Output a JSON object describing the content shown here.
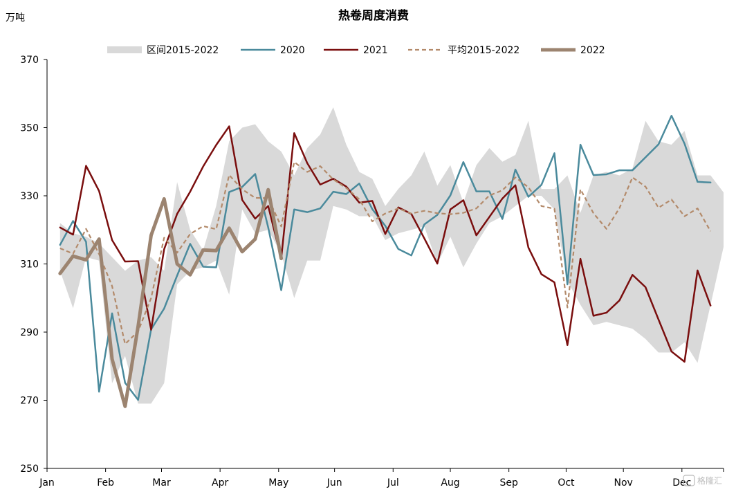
{
  "chart_data": {
    "type": "line",
    "title": "热卷周度消费",
    "ylabel": "万吨",
    "ylim": [
      250,
      370
    ],
    "yticks": [
      250,
      270,
      290,
      310,
      330,
      350,
      370
    ],
    "xlim": [
      0,
      52
    ],
    "month_ticks": [
      {
        "label": "Jan",
        "week": 0
      },
      {
        "label": "Feb",
        "week": 4.5
      },
      {
        "label": "Mar",
        "week": 8.8
      },
      {
        "label": "Apr",
        "week": 13.3
      },
      {
        "label": "May",
        "week": 17.8
      },
      {
        "label": "Jun",
        "week": 22.1
      },
      {
        "label": "Jul",
        "week": 26.6
      },
      {
        "label": "Aug",
        "week": 31.0
      },
      {
        "label": "Sep",
        "week": 35.5
      },
      {
        "label": "Oct",
        "week": 39.9
      },
      {
        "label": "Nov",
        "week": 44.3
      },
      {
        "label": "Dec",
        "week": 48.8
      }
    ],
    "grid": false,
    "legend_position": "top",
    "band": {
      "name": "区间2015-2022",
      "color": "#d9d9d9",
      "x": [
        1,
        2,
        3,
        4,
        5,
        6,
        7,
        8,
        9,
        10,
        11,
        12,
        13,
        14,
        15,
        16,
        17,
        18,
        19,
        20,
        21,
        22,
        23,
        24,
        25,
        26,
        27,
        28,
        29,
        30,
        31,
        32,
        33,
        34,
        35,
        36,
        37,
        38,
        39,
        40,
        41,
        42,
        43,
        44,
        45,
        46,
        47,
        48,
        49,
        50,
        51,
        52
      ],
      "upper": [
        322,
        319,
        318,
        316,
        312,
        308,
        311,
        312,
        308,
        334,
        320,
        314,
        327,
        346,
        350,
        351,
        346,
        343,
        336,
        344,
        348,
        356,
        345,
        337,
        335,
        327,
        332,
        336,
        343,
        333,
        339,
        328,
        339,
        344,
        340,
        342,
        352,
        332,
        332,
        336,
        325,
        336,
        337,
        336,
        338,
        352,
        346,
        345,
        349,
        336,
        336,
        331
      ],
      "lower": [
        308,
        297,
        312,
        311,
        275,
        283,
        269,
        269,
        275,
        304,
        308,
        309,
        311,
        301,
        326,
        319,
        320,
        313,
        300,
        311,
        311,
        327,
        326,
        324,
        324,
        317,
        319,
        320,
        321,
        310,
        318,
        309,
        316,
        322,
        324,
        327,
        330,
        330,
        326,
        305,
        298,
        292,
        293,
        292,
        291,
        288,
        284,
        284,
        287,
        281,
        298,
        315
      ]
    },
    "series": [
      {
        "name": "2020",
        "color": "#4a8a9c",
        "style": "solid",
        "width": 2.5,
        "x": [
          1,
          2,
          3,
          4,
          5,
          6,
          7,
          8,
          9,
          10,
          11,
          12,
          13,
          14,
          15,
          16,
          17,
          18,
          19,
          20,
          21,
          22,
          23,
          24,
          25,
          26,
          27,
          28,
          29,
          30,
          31,
          32,
          33,
          34,
          35,
          36,
          37,
          38,
          39,
          40,
          41,
          42,
          43,
          44,
          45,
          46,
          47,
          48,
          49,
          50,
          51
        ],
        "values": [
          315.6,
          322.6,
          316.5,
          272.5,
          295.5,
          275.1,
          270.1,
          290.8,
          296.9,
          306.6,
          315.9,
          309.2,
          309.0,
          331.1,
          332.6,
          336.4,
          320.7,
          302.3,
          326.0,
          325.2,
          326.3,
          331.2,
          330.5,
          333.6,
          326.1,
          321.2,
          314.4,
          312.5,
          321.6,
          324.4,
          330.1,
          339.9,
          331.3,
          331.3,
          323.2,
          337.7,
          329.7,
          333.2,
          342.5,
          304.0,
          345.0,
          336.1,
          336.3,
          337.5,
          337.5,
          341.3,
          345.1,
          353.5,
          345.3,
          334.1,
          333.9
        ]
      },
      {
        "name": "2021",
        "color": "#7a0e0e",
        "style": "solid",
        "width": 2.5,
        "x": [
          1,
          2,
          3,
          4,
          5,
          6,
          7,
          8,
          9,
          10,
          11,
          12,
          13,
          14,
          15,
          16,
          17,
          18,
          19,
          20,
          21,
          22,
          23,
          24,
          25,
          26,
          27,
          28,
          29,
          30,
          31,
          32,
          33,
          34,
          35,
          36,
          37,
          38,
          39,
          40,
          41,
          42,
          43,
          44,
          45,
          46,
          47,
          48,
          49,
          50,
          51
        ],
        "values": [
          320.7,
          318.6,
          338.8,
          331.4,
          317.0,
          310.7,
          310.8,
          290.7,
          314.3,
          324.7,
          331.2,
          338.6,
          344.9,
          350.4,
          328.8,
          323.3,
          327.0,
          311.6,
          348.4,
          339.6,
          333.3,
          335.0,
          332.7,
          328.0,
          328.5,
          318.8,
          326.6,
          324.7,
          317.5,
          310.1,
          326.0,
          328.7,
          318.4,
          323.8,
          329.2,
          333.1,
          314.8,
          307.0,
          304.6,
          286.2,
          311.5,
          294.8,
          295.7,
          299.3,
          306.8,
          303.2,
          293.7,
          284.3,
          281.3,
          308.1,
          297.8
        ]
      },
      {
        "name": "平均2015-2022",
        "color": "#b38a6a",
        "style": "dashed",
        "width": 2.2,
        "x": [
          1,
          2,
          3,
          4,
          5,
          6,
          7,
          8,
          9,
          10,
          11,
          12,
          13,
          14,
          15,
          16,
          17,
          18,
          19,
          20,
          21,
          22,
          23,
          24,
          25,
          26,
          27,
          28,
          29,
          30,
          31,
          32,
          33,
          34,
          35,
          36,
          37,
          38,
          39,
          40,
          41,
          42,
          43,
          44,
          45,
          46,
          47,
          48,
          49,
          50,
          51
        ],
        "values": [
          314.6,
          313.0,
          320.3,
          312.9,
          303.5,
          286.5,
          290.2,
          300.0,
          317.7,
          313.3,
          318.8,
          321.1,
          320.2,
          336.1,
          331.9,
          329.4,
          329.3,
          321.0,
          339.9,
          337.0,
          338.7,
          334.8,
          332.3,
          329.0,
          322.5,
          324.8,
          326.3,
          324.8,
          325.6,
          324.9,
          324.6,
          325.0,
          326.3,
          330.1,
          331.6,
          335.4,
          332.5,
          327.0,
          326.2,
          297.2,
          331.9,
          324.9,
          320.3,
          326.4,
          335.4,
          332.7,
          326.5,
          328.9,
          324.0,
          326.3,
          319.6
        ]
      },
      {
        "name": "2022",
        "color": "#9c8470",
        "style": "solid",
        "width": 5,
        "x": [
          1,
          2,
          3,
          4,
          5,
          6,
          7,
          8,
          9,
          10,
          11,
          12,
          13,
          14,
          15,
          16,
          17,
          18
        ],
        "values": [
          307.2,
          312.3,
          311.2,
          317.3,
          282.1,
          268.2,
          291.7,
          318.4,
          329.1,
          310.0,
          306.8,
          314.1,
          313.9,
          320.5,
          313.6,
          317.3,
          331.8,
          311.6
        ]
      }
    ],
    "watermark": "格隆汇"
  }
}
